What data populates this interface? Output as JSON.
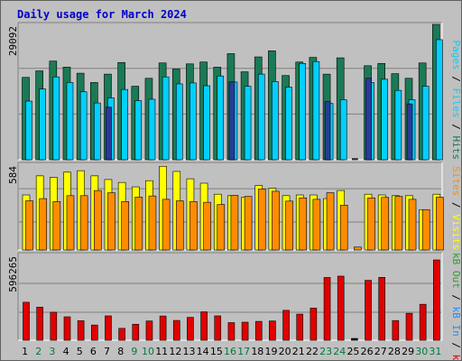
{
  "title": "Daily usage for March 2024",
  "colors": {
    "hits": "#1a7a55",
    "files": "#00d0ff",
    "pages": "#2a3a9a",
    "visits": "#ffff00",
    "sites": "#ff8c00",
    "kbin": "#1a90ff",
    "kbout": "#2ca02c",
    "kbf": "#e00000",
    "day_normal": "#000000",
    "day_weekend": "#007a3c"
  },
  "chart_data": [
    {
      "type": "bar",
      "ylabel_parts": [
        "Pages",
        " / ",
        "Files",
        " / ",
        "Hits"
      ],
      "ymax": 29092,
      "ymax_label": "29092",
      "categories": [
        "1",
        "2",
        "3",
        "4",
        "5",
        "6",
        "7",
        "8",
        "9",
        "10",
        "11",
        "12",
        "13",
        "14",
        "15",
        "16",
        "17",
        "18",
        "19",
        "20",
        "21",
        "22",
        "23",
        "24",
        "25",
        "26",
        "27",
        "28",
        "29",
        "30",
        "31"
      ],
      "weekend_days": [
        "2",
        "3",
        "9",
        "10",
        "16",
        "17",
        "23",
        "24",
        "30",
        "31"
      ],
      "series": [
        {
          "name": "Hits",
          "values": [
            17700,
            19100,
            21200,
            19900,
            18600,
            16600,
            18400,
            20900,
            15800,
            17500,
            20800,
            19500,
            20600,
            21000,
            19900,
            22800,
            18900,
            22100,
            23400,
            18100,
            21000,
            22000,
            18400,
            21900,
            0,
            20200,
            20700,
            18500,
            17500,
            20800,
            29092
          ]
        },
        {
          "name": "Files",
          "values": [
            12600,
            15200,
            17800,
            16600,
            14600,
            12200,
            13300,
            15100,
            12700,
            13000,
            17800,
            16300,
            16500,
            15900,
            18000,
            16700,
            15800,
            18400,
            16800,
            15600,
            20700,
            21100,
            12100,
            12900,
            0,
            16600,
            17300,
            14900,
            12900,
            15800,
            25800
          ]
        },
        {
          "name": "Pages",
          "values": [
            0,
            0,
            0,
            0,
            0,
            0,
            11300,
            0,
            0,
            0,
            0,
            0,
            0,
            0,
            0,
            16700,
            0,
            0,
            0,
            0,
            0,
            0,
            12500,
            0,
            260,
            17500,
            0,
            0,
            12000,
            0,
            0
          ]
        }
      ]
    },
    {
      "type": "bar",
      "ylabel_parts": [
        "Visits",
        " / ",
        "Sites"
      ],
      "ymax": 584,
      "ymax_label": "584",
      "categories": [
        "1",
        "2",
        "3",
        "4",
        "5",
        "6",
        "7",
        "8",
        "9",
        "10",
        "11",
        "12",
        "13",
        "14",
        "15",
        "16",
        "17",
        "18",
        "19",
        "20",
        "21",
        "22",
        "23",
        "24",
        "25",
        "26",
        "27",
        "28",
        "29",
        "30",
        "31"
      ],
      "series": [
        {
          "name": "Visits",
          "values": [
            375,
            505,
            495,
            530,
            540,
            505,
            480,
            460,
            430,
            472,
            570,
            535,
            485,
            455,
            380,
            370,
            360,
            440,
            420,
            370,
            375,
            375,
            350,
            405,
            0,
            380,
            375,
            370,
            370,
            275,
            380
          ]
        },
        {
          "name": "Sites",
          "values": [
            335,
            350,
            330,
            370,
            370,
            405,
            390,
            330,
            360,
            368,
            345,
            335,
            330,
            325,
            310,
            372,
            365,
            415,
            400,
            333,
            355,
            345,
            390,
            305,
            20,
            355,
            358,
            365,
            345,
            275,
            360
          ]
        }
      ]
    },
    {
      "type": "bar",
      "ylabel_parts": [
        "KBytes F",
        " / ",
        "KB In",
        " / ",
        "KB Out"
      ],
      "ylabel_parts_visible": [
        "kB F",
        " / ",
        "kB In",
        " / ",
        "kB Out"
      ],
      "ymax": 596265,
      "ymax_label": "596265",
      "categories": [
        "1",
        "2",
        "3",
        "4",
        "5",
        "6",
        "7",
        "8",
        "9",
        "10",
        "11",
        "12",
        "13",
        "14",
        "15",
        "16",
        "17",
        "18",
        "19",
        "20",
        "21",
        "22",
        "23",
        "24",
        "25",
        "26",
        "27",
        "28",
        "29",
        "30",
        "31"
      ],
      "series": [
        {
          "name": "kB F",
          "values": [
            282000,
            246000,
            208000,
            174000,
            145000,
            113000,
            181000,
            88000,
            119000,
            143000,
            180000,
            147000,
            170000,
            211000,
            181000,
            131000,
            134000,
            140000,
            143000,
            222000,
            194000,
            239000,
            466000,
            476000,
            6000,
            445000,
            467000,
            146000,
            200000,
            267000,
            596265
          ]
        }
      ]
    }
  ]
}
